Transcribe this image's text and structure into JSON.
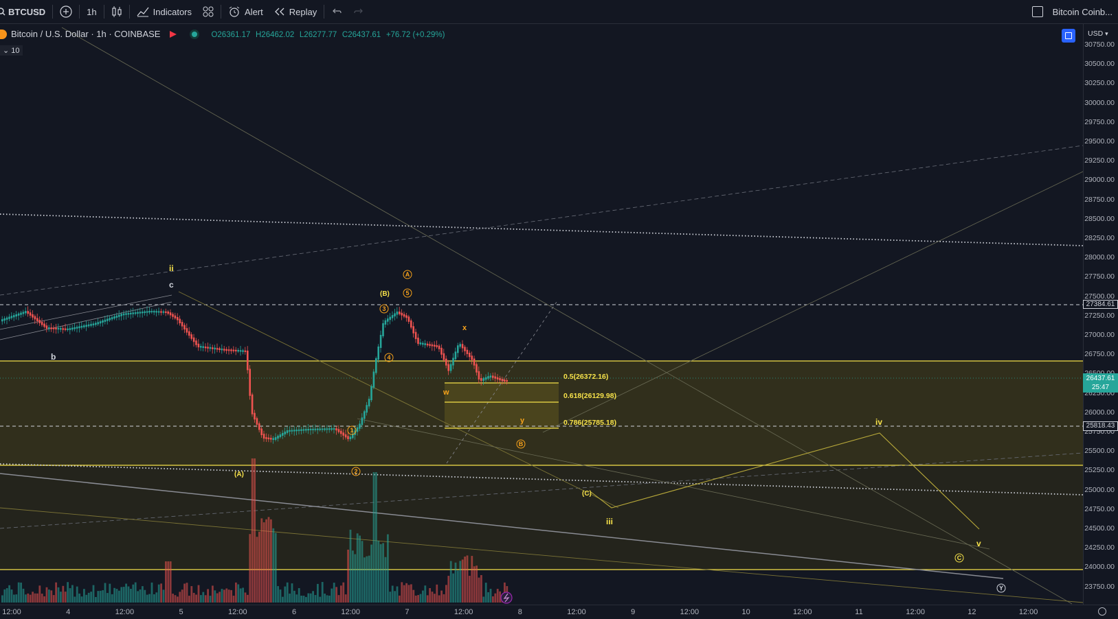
{
  "toolbar": {
    "symbol": "BTCUSD",
    "interval": "1h",
    "indicators": "Indicators",
    "alert": "Alert",
    "replay": "Replay",
    "compare_label": "Bitcoin Coinb..."
  },
  "legend": {
    "title": "Bitcoin / U.S. Dollar · 1h · COINBASE",
    "open": "O26361.17",
    "high": "H26462.02",
    "low": "L26277.77",
    "close": "C26437.61",
    "change": "+76.72 (+0.29%)",
    "collapse_count": "10"
  },
  "price_axis": {
    "currency": "USD",
    "ticks": [
      "30750.00",
      "30500.00",
      "30250.00",
      "30000.00",
      "29750.00",
      "29500.00",
      "29250.00",
      "29000.00",
      "28750.00",
      "28500.00",
      "28250.00",
      "28000.00",
      "27750.00",
      "27500.00",
      "27250.00",
      "27000.00",
      "26750.00",
      "26500.00",
      "26250.00",
      "26000.00",
      "25750.00",
      "25500.00",
      "25250.00",
      "25000.00",
      "24750.00",
      "24500.00",
      "24250.00",
      "24000.00",
      "23750.00"
    ],
    "badge_27384": "27384.61",
    "badge_current": "26437.61",
    "badge_countdown": "25:47",
    "badge_25818": "25818.43"
  },
  "time_axis": [
    "12:00",
    "4",
    "12:00",
    "5",
    "12:00",
    "6",
    "12:00",
    "7",
    "12:00",
    "8",
    "12:00",
    "9",
    "12:00",
    "10",
    "12:00",
    "11",
    "12:00",
    "12",
    "12:00"
  ],
  "fib": {
    "f05": "0.5(26372.16)",
    "f0618": "0.618(26129.98)",
    "f0786": "0.786(25785.18)"
  },
  "wave_labels": {
    "ii": "ii",
    "c": "c",
    "b": "b",
    "A_paren": "(A)",
    "B_paren": "(B)",
    "A_circ": "A",
    "B_circ": "B",
    "C_circ": "C",
    "Y_circ": "Y",
    "w1": "1",
    "w2": "2",
    "w3": "3",
    "w4": "4",
    "w5": "5",
    "x": "x",
    "w": "w",
    "y": "y",
    "C_paren": "(C)",
    "iii": "iii",
    "iv": "iv",
    "v": "v"
  },
  "colors": {
    "up": "#26a69a",
    "down": "#ef5350",
    "fib_line": "#f7e24a",
    "wave_orange": "#f7a21b",
    "background": "#131722"
  }
}
